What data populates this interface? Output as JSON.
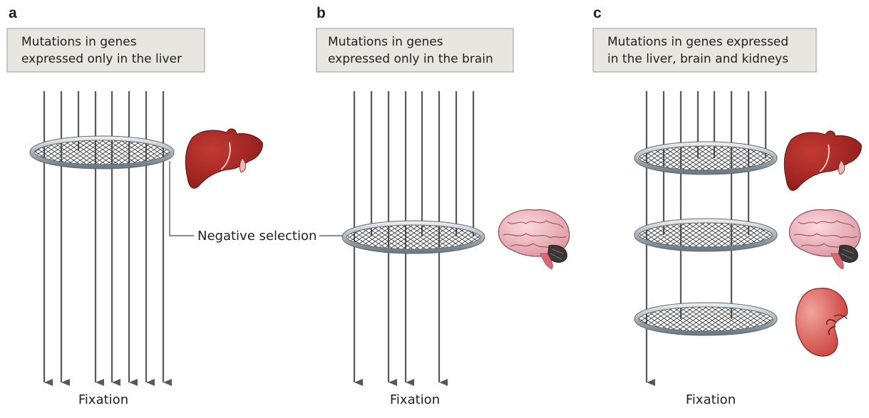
{
  "panels": [
    {
      "letter": "a",
      "box_lines": [
        "Mutations in genes",
        "expressed only in the liver"
      ],
      "fixation": "Fixation"
    },
    {
      "letter": "b",
      "box_lines": [
        "Mutations in genes",
        "expressed only in the brain"
      ],
      "fixation": "Fixation"
    },
    {
      "letter": "c",
      "box_lines": [
        "Mutations in genes expressed",
        "in the liver, brain and kidneys"
      ],
      "fixation": "Fixation"
    }
  ],
  "negative_selection_label": "Negative selection",
  "organ_icons": [
    "liver-icon",
    "brain-icon",
    "kidney-icon"
  ],
  "colors": {
    "box_fill": "#e8e6e0",
    "arrow": "#58585a",
    "ring": "#b9c2c8",
    "liver": "#a3201f",
    "brain": "#e8a3ad",
    "kidney": "#d8544f"
  }
}
